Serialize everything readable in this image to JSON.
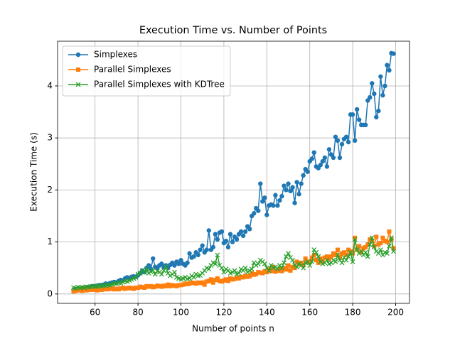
{
  "chart_data": {
    "type": "line",
    "title": "Execution Time vs. Number of Points",
    "xlabel": "Number of points n",
    "ylabel": "Execution Time (s)",
    "x": [
      50,
      51,
      52,
      53,
      54,
      55,
      56,
      57,
      58,
      59,
      60,
      61,
      62,
      63,
      64,
      65,
      66,
      67,
      68,
      69,
      70,
      71,
      72,
      73,
      74,
      75,
      76,
      77,
      78,
      79,
      80,
      81,
      82,
      83,
      84,
      85,
      86,
      87,
      88,
      89,
      90,
      91,
      92,
      93,
      94,
      95,
      96,
      97,
      98,
      99,
      100,
      101,
      102,
      103,
      104,
      105,
      106,
      107,
      108,
      109,
      110,
      111,
      112,
      113,
      114,
      115,
      116,
      117,
      118,
      119,
      120,
      121,
      122,
      123,
      124,
      125,
      126,
      127,
      128,
      129,
      130,
      131,
      132,
      133,
      134,
      135,
      136,
      137,
      138,
      139,
      140,
      141,
      142,
      143,
      144,
      145,
      146,
      147,
      148,
      149,
      150,
      151,
      152,
      153,
      154,
      155,
      156,
      157,
      158,
      159,
      160,
      161,
      162,
      163,
      164,
      165,
      166,
      167,
      168,
      169,
      170,
      171,
      172,
      173,
      174,
      175,
      176,
      177,
      178,
      179,
      180,
      181,
      182,
      183,
      184,
      185,
      186,
      187,
      188,
      189,
      190,
      191,
      192,
      193,
      194,
      195,
      196,
      197,
      198,
      199
    ],
    "series": [
      {
        "name": "Simplexes",
        "color": "#1f77b4",
        "marker": "circle",
        "values": [
          0.08,
          0.09,
          0.1,
          0.1,
          0.11,
          0.12,
          0.13,
          0.12,
          0.14,
          0.15,
          0.15,
          0.16,
          0.17,
          0.17,
          0.18,
          0.2,
          0.19,
          0.21,
          0.22,
          0.23,
          0.22,
          0.25,
          0.27,
          0.26,
          0.3,
          0.32,
          0.29,
          0.33,
          0.34,
          0.33,
          0.36,
          0.4,
          0.45,
          0.42,
          0.5,
          0.55,
          0.48,
          0.68,
          0.52,
          0.5,
          0.55,
          0.58,
          0.52,
          0.55,
          0.5,
          0.56,
          0.6,
          0.55,
          0.62,
          0.58,
          0.65,
          0.58,
          0.55,
          0.6,
          0.78,
          0.7,
          0.72,
          0.8,
          0.75,
          0.85,
          0.93,
          0.8,
          0.85,
          1.22,
          0.85,
          0.9,
          1.15,
          1.05,
          1.18,
          1.2,
          0.98,
          1.02,
          0.9,
          1.15,
          1.0,
          1.1,
          1.05,
          1.15,
          1.2,
          1.12,
          1.2,
          1.3,
          1.25,
          1.5,
          1.55,
          1.65,
          1.6,
          2.12,
          1.78,
          1.85,
          1.52,
          1.7,
          1.72,
          1.7,
          1.9,
          1.7,
          1.8,
          1.88,
          2.08,
          2.0,
          2.12,
          1.98,
          2.05,
          1.75,
          2.15,
          1.92,
          2.12,
          2.28,
          2.4,
          2.35,
          2.55,
          2.6,
          2.72,
          2.45,
          2.42,
          2.48,
          2.55,
          2.62,
          2.45,
          2.78,
          2.68,
          2.62,
          3.02,
          2.95,
          2.62,
          2.88,
          2.98,
          3.02,
          2.92,
          3.45,
          3.45,
          2.95,
          3.55,
          3.35,
          3.25,
          3.25,
          3.25,
          3.72,
          3.78,
          4.05,
          3.85,
          3.4,
          3.52,
          4.18,
          3.82,
          4.0,
          4.4,
          4.3,
          4.63,
          4.62
        ]
      },
      {
        "name": "Parallel Simplexes",
        "color": "#ff7f0e",
        "marker": "square",
        "values": [
          0.05,
          0.06,
          0.07,
          0.08,
          0.06,
          0.12,
          0.07,
          0.08,
          0.08,
          0.09,
          0.08,
          0.07,
          0.1,
          0.08,
          0.09,
          0.1,
          0.09,
          0.1,
          0.11,
          0.09,
          0.1,
          0.09,
          0.11,
          0.12,
          0.1,
          0.11,
          0.12,
          0.11,
          0.1,
          0.12,
          0.12,
          0.14,
          0.13,
          0.12,
          0.15,
          0.14,
          0.15,
          0.13,
          0.14,
          0.16,
          0.15,
          0.14,
          0.16,
          0.15,
          0.18,
          0.15,
          0.17,
          0.16,
          0.15,
          0.17,
          0.17,
          0.18,
          0.2,
          0.19,
          0.2,
          0.22,
          0.21,
          0.2,
          0.22,
          0.21,
          0.22,
          0.18,
          0.24,
          0.25,
          0.28,
          0.22,
          0.27,
          0.3,
          0.25,
          0.24,
          0.26,
          0.28,
          0.25,
          0.3,
          0.28,
          0.29,
          0.31,
          0.3,
          0.33,
          0.32,
          0.35,
          0.33,
          0.34,
          0.4,
          0.37,
          0.38,
          0.42,
          0.41,
          0.4,
          0.44,
          0.42,
          0.47,
          0.44,
          0.52,
          0.43,
          0.45,
          0.48,
          0.44,
          0.5,
          0.47,
          0.55,
          0.45,
          0.52,
          0.5,
          0.62,
          0.58,
          0.6,
          0.55,
          0.68,
          0.62,
          0.62,
          0.7,
          0.75,
          0.65,
          0.6,
          0.68,
          0.62,
          0.7,
          0.72,
          0.68,
          0.72,
          0.78,
          0.75,
          0.85,
          0.7,
          0.78,
          0.8,
          0.75,
          0.85,
          0.82,
          0.78,
          1.08,
          0.85,
          0.92,
          0.8,
          0.88,
          0.9,
          0.95,
          1.05,
          1.02,
          0.92,
          1.1,
          0.95,
          0.98,
          1.08,
          1.02,
          1.0,
          1.2,
          1.05,
          0.88
        ]
      },
      {
        "name": "Parallel Simplexes with KDTree",
        "color": "#2ca02c",
        "marker": "x",
        "values": [
          0.12,
          0.11,
          0.13,
          0.12,
          0.13,
          0.12,
          0.14,
          0.13,
          0.14,
          0.15,
          0.14,
          0.15,
          0.16,
          0.15,
          0.17,
          0.16,
          0.18,
          0.17,
          0.19,
          0.2,
          0.2,
          0.22,
          0.21,
          0.23,
          0.25,
          0.24,
          0.26,
          0.28,
          0.3,
          0.32,
          0.38,
          0.4,
          0.45,
          0.42,
          0.48,
          0.4,
          0.43,
          0.45,
          0.38,
          0.44,
          0.42,
          0.38,
          0.45,
          0.52,
          0.4,
          0.35,
          0.38,
          0.42,
          0.32,
          0.3,
          0.28,
          0.3,
          0.32,
          0.29,
          0.3,
          0.35,
          0.32,
          0.38,
          0.35,
          0.36,
          0.4,
          0.45,
          0.5,
          0.48,
          0.55,
          0.6,
          0.58,
          0.75,
          0.55,
          0.5,
          0.42,
          0.48,
          0.45,
          0.4,
          0.42,
          0.45,
          0.38,
          0.4,
          0.48,
          0.45,
          0.5,
          0.42,
          0.45,
          0.48,
          0.6,
          0.55,
          0.58,
          0.65,
          0.62,
          0.58,
          0.5,
          0.45,
          0.55,
          0.5,
          0.52,
          0.48,
          0.55,
          0.5,
          0.6,
          0.72,
          0.78,
          0.7,
          0.65,
          0.55,
          0.52,
          0.58,
          0.55,
          0.5,
          0.6,
          0.62,
          0.55,
          0.62,
          0.85,
          0.8,
          0.72,
          0.62,
          0.58,
          0.6,
          0.65,
          0.58,
          0.6,
          0.65,
          0.62,
          0.75,
          0.65,
          0.6,
          0.7,
          0.65,
          0.72,
          0.8,
          0.62,
          1.05,
          0.85,
          0.78,
          0.82,
          0.75,
          0.8,
          0.72,
          0.95,
          1.08,
          0.9,
          0.82,
          0.78,
          0.85,
          0.75,
          0.8,
          0.78,
          0.92,
          1.08,
          0.82
        ]
      }
    ],
    "xlim": [
      42.55,
      206.45
    ],
    "ylim": [
      -0.18,
      4.86
    ],
    "xticks": [
      60,
      80,
      100,
      120,
      140,
      160,
      180,
      200
    ],
    "yticks": [
      0,
      1,
      2,
      3,
      4
    ],
    "grid": true,
    "legend": "upper left"
  }
}
